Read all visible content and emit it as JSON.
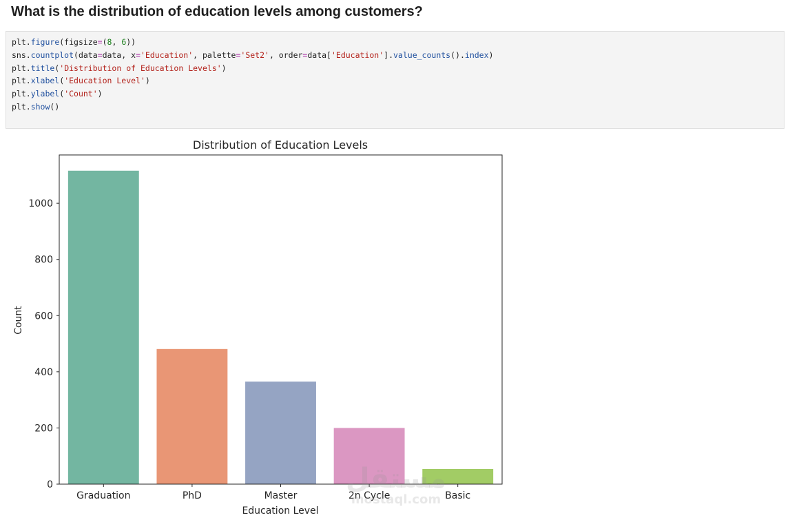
{
  "notebook": {
    "heading": "What is the distribution of education levels among customers?"
  },
  "code_cell": {
    "lines": [
      "plt.figure(figsize=(8, 6))",
      "sns.countplot(data=data, x='Education', palette='Set2', order=data['Education'].value_counts().index)",
      "plt.title('Distribution of Education Levels')",
      "plt.xlabel('Education Level')",
      "plt.ylabel('Count')",
      "plt.show()"
    ]
  },
  "chart_data": {
    "type": "bar",
    "title": "Distribution of Education Levels",
    "xlabel": "Education Level",
    "ylabel": "Count",
    "categories": [
      "Graduation",
      "PhD",
      "Master",
      "2n Cycle",
      "Basic"
    ],
    "values": [
      1116,
      481,
      365,
      200,
      54
    ],
    "colors": [
      "#73b6a1",
      "#e99675",
      "#95a4c3",
      "#db97c2",
      "#a2cc65"
    ],
    "yticks": [
      0,
      200,
      400,
      600,
      800,
      1000
    ],
    "ylim": [
      0,
      1172
    ],
    "grid": false,
    "legend": "none"
  },
  "watermark": {
    "line1": "مستقل",
    "line2": "mostaql.com"
  }
}
